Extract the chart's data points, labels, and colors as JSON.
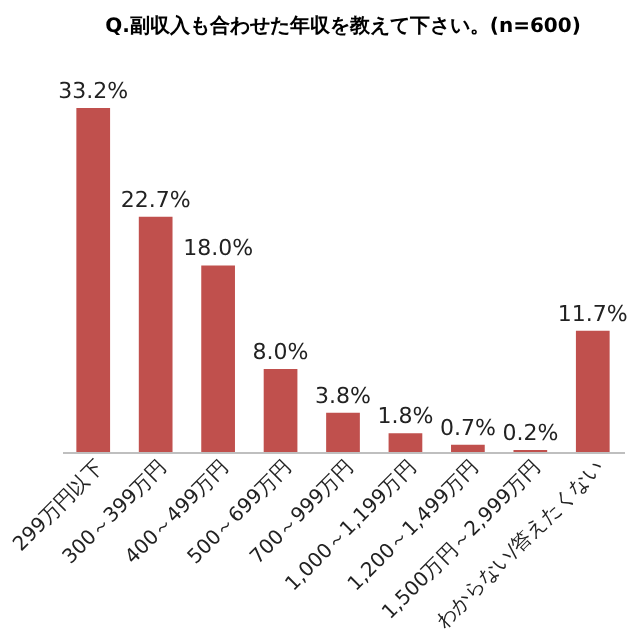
{
  "chart_data": {
    "type": "bar",
    "title": "Q.副収入も合わせた年収を教えて下さい。(n=600)",
    "categories": [
      "299万円以下",
      "300～399万円",
      "400～499万円",
      "500～699万円",
      "700～999万円",
      "1,000～1,199万円",
      "1,200～1,499万円",
      "1,500万円～2,999万円",
      "わからない/答えたくない"
    ],
    "values": [
      33.2,
      22.7,
      18.0,
      8.0,
      3.8,
      1.8,
      0.7,
      0.2,
      11.7
    ],
    "value_labels": [
      "33.2%",
      "22.7%",
      "18.0%",
      "8.0%",
      "3.8%",
      "1.8%",
      "0.7%",
      "0.2%",
      "11.7%"
    ],
    "color": "#c0504d"
  }
}
